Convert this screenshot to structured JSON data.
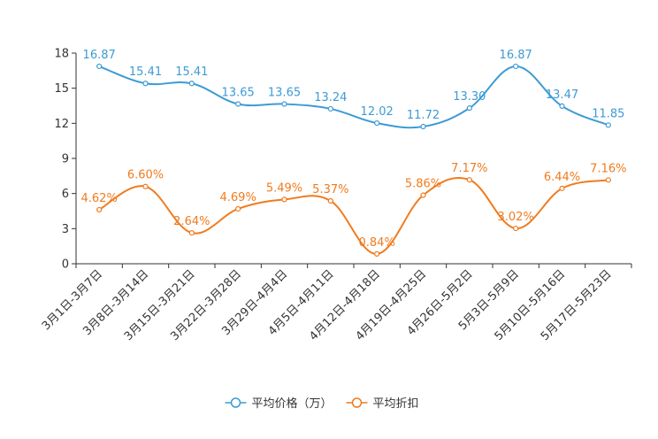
{
  "chart_data": {
    "type": "line",
    "title": "",
    "xlabel": "",
    "ylabel": "",
    "ylim": [
      0,
      18
    ],
    "yticks": [
      0,
      3,
      6,
      9,
      12,
      15,
      18
    ],
    "categories": [
      "3月1日-3月7日",
      "3月8日-3月14日",
      "3月15日-3月21日",
      "3月22日-3月28日",
      "3月29日-4月4日",
      "4月5日-4月11日",
      "4月12日-4月18日",
      "4月19日-4月25日",
      "4月26日-5月2日",
      "5月3日-5月9日",
      "5月10日-5月16日",
      "5月17日-5月23日"
    ],
    "series": [
      {
        "name": "平均价格（万）",
        "color": "#3d9bd4",
        "values": [
          16.87,
          15.41,
          15.41,
          13.65,
          13.65,
          13.24,
          12.02,
          11.72,
          13.3,
          16.87,
          13.47,
          11.85
        ],
        "labels": [
          "16.87",
          "15.41",
          "15.41",
          "13.65",
          "13.65",
          "13.24",
          "12.02",
          "11.72",
          "13.30",
          "16.87",
          "13.47",
          "11.85"
        ]
      },
      {
        "name": "平均折扣",
        "color": "#f07b1e",
        "values": [
          4.62,
          6.6,
          2.64,
          4.69,
          5.49,
          5.37,
          0.84,
          5.86,
          7.17,
          3.02,
          6.44,
          7.16
        ],
        "labels": [
          "4.62%",
          "6.60%",
          "2.64%",
          "4.69%",
          "5.49%",
          "5.37%",
          "0.84%",
          "5.86%",
          "7.17%",
          "3.02%",
          "6.44%",
          "7.16%"
        ]
      }
    ],
    "legend_position": "bottom-center",
    "grid": false,
    "axis_color": "#333333",
    "text_color": "#333333"
  }
}
